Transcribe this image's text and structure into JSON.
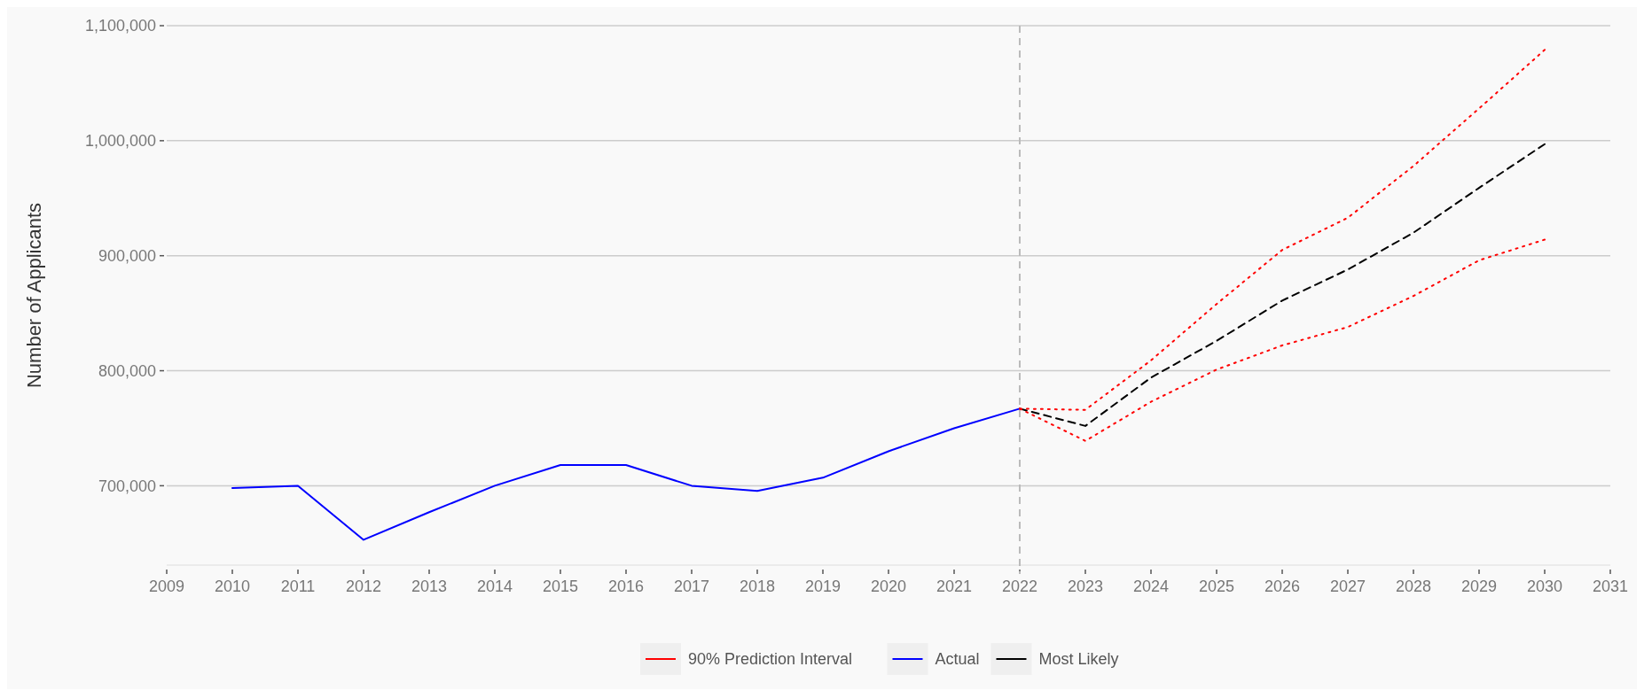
{
  "chart_data": {
    "type": "line",
    "ylabel": "Number of Applicants",
    "x": [
      2010,
      2011,
      2012,
      2013,
      2014,
      2015,
      2016,
      2017,
      2018,
      2019,
      2020,
      2021,
      2022
    ],
    "series": [
      {
        "name": "90% Prediction Interval",
        "color": "#ff0000",
        "line_style": "dotted",
        "x": [
          2022,
          2023,
          2024,
          2025,
          2026,
          2027,
          2028,
          2029,
          2030
        ],
        "values": [
          767000,
          766000,
          809000,
          858000,
          905000,
          933000,
          978000,
          1028000,
          1079000
        ]
      },
      {
        "color": "#ff0000",
        "line_style": "dotted",
        "x": [
          2022,
          2023,
          2024,
          2025,
          2026,
          2027,
          2028,
          2029,
          2030
        ],
        "values": [
          767000,
          739000,
          773000,
          801000,
          822000,
          838000,
          865000,
          896000,
          914000
        ]
      },
      {
        "name": "Actual",
        "color": "#0000ff",
        "line_style": "solid",
        "values": [
          698000,
          700000,
          653000,
          677000,
          700000,
          718000,
          718000,
          700000,
          695500,
          707000,
          730000,
          750000,
          767000
        ]
      },
      {
        "name": "Most Likely",
        "color": "#000000",
        "line_style": "dashed",
        "x": [
          2022,
          2023,
          2024,
          2025,
          2026,
          2027,
          2028,
          2029,
          2030
        ],
        "values": [
          767000,
          752000,
          794000,
          826000,
          861000,
          888000,
          920000,
          959000,
          997000
        ]
      }
    ],
    "xlim": [
      2009,
      2031
    ],
    "xticks": [
      2009,
      2010,
      2011,
      2012,
      2013,
      2014,
      2015,
      2016,
      2017,
      2018,
      2019,
      2020,
      2021,
      2022,
      2023,
      2024,
      2025,
      2026,
      2027,
      2028,
      2029,
      2030,
      2031
    ],
    "ylim": [
      631000,
      1100000
    ],
    "yticks": [
      {
        "value": 700000,
        "label": "700,000"
      },
      {
        "value": 800000,
        "label": "800,000"
      },
      {
        "value": 900000,
        "label": "900,000"
      },
      {
        "value": 1000000,
        "label": "1,000,000"
      },
      {
        "value": 1100000,
        "label": "1,100,000"
      }
    ],
    "ref_lines": [
      {
        "axis": "x",
        "value": 2022,
        "color": "#bbbbbb",
        "line_style": "dashed"
      }
    ],
    "grid": "y",
    "legend": "bottom",
    "marker": "none"
  }
}
